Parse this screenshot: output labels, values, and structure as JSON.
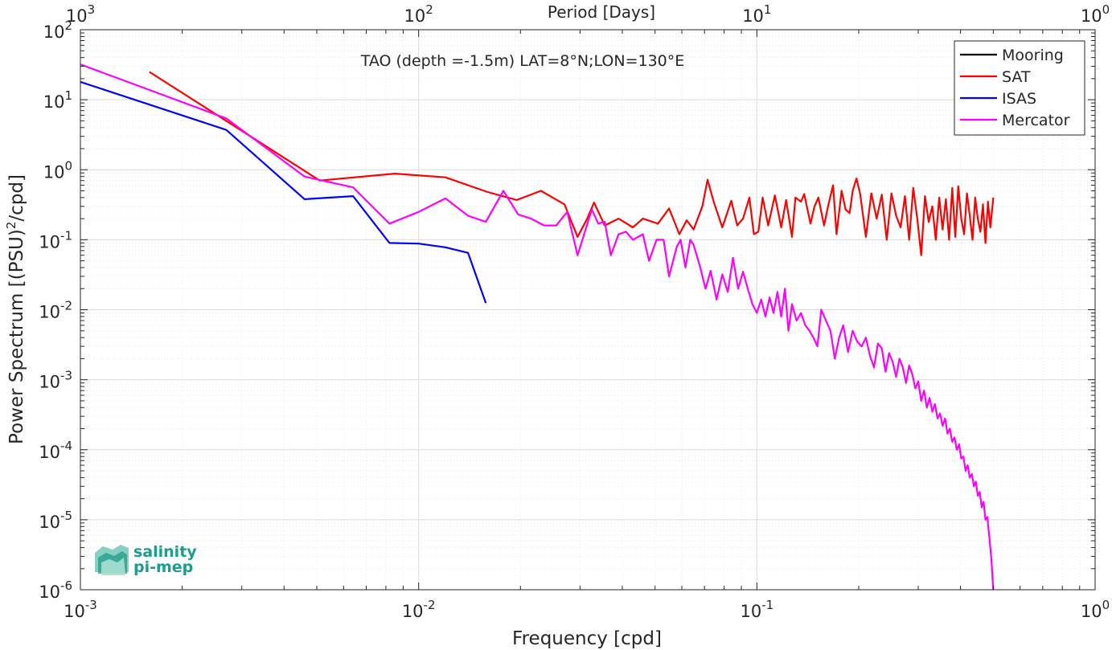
{
  "chart_data": {
    "type": "line",
    "title": "TAO (depth =-1.5m) LAT=8°N;LON=130°E",
    "xlabel": "Frequency [cpd]",
    "ylabel": "Power Spectrum [(PSU)",
    "ylabel_sup": "2",
    "ylabel_tail": "/cpd]",
    "x2label": "Period [Days]",
    "xscale": "log",
    "yscale": "log",
    "xlim": [
      0.001,
      1
    ],
    "ylim": [
      1e-06,
      100
    ],
    "grid": true,
    "legend_position": "top-right",
    "x_ticks": [
      {
        "base": "10",
        "exp": "-3",
        "value": 0.001
      },
      {
        "base": "10",
        "exp": "-2",
        "value": 0.01
      },
      {
        "base": "10",
        "exp": "-1",
        "value": 0.1
      },
      {
        "base": "10",
        "exp": "0",
        "value": 1
      }
    ],
    "x2_ticks": [
      {
        "base": "10",
        "exp": "3",
        "value": 0.001
      },
      {
        "base": "10",
        "exp": "2",
        "value": 0.01
      },
      {
        "base": "10",
        "exp": "1",
        "value": 0.1
      },
      {
        "base": "10",
        "exp": "0",
        "value": 1
      }
    ],
    "y_ticks": [
      {
        "base": "10",
        "exp": "2",
        "value": 100
      },
      {
        "base": "10",
        "exp": "1",
        "value": 10
      },
      {
        "base": "10",
        "exp": "0",
        "value": 1
      },
      {
        "base": "10",
        "exp": "-1",
        "value": 0.1
      },
      {
        "base": "10",
        "exp": "-2",
        "value": 0.01
      },
      {
        "base": "10",
        "exp": "-3",
        "value": 0.001
      },
      {
        "base": "10",
        "exp": "-4",
        "value": 0.0001
      },
      {
        "base": "10",
        "exp": "-5",
        "value": 1e-05
      },
      {
        "base": "10",
        "exp": "-6",
        "value": 1e-06
      }
    ],
    "series": [
      {
        "name": "Mooring",
        "color": "#000000",
        "x": [],
        "y": []
      },
      {
        "name": "SAT",
        "color": "#ff0000",
        "x": [
          0.0016,
          0.0051,
          0.0085,
          0.012,
          0.016,
          0.0195,
          0.023,
          0.027,
          0.0295,
          0.0315,
          0.033,
          0.0355,
          0.039,
          0.043,
          0.046,
          0.051,
          0.055,
          0.059,
          0.062,
          0.065,
          0.069,
          0.0715,
          0.0745,
          0.079,
          0.084,
          0.0875,
          0.091,
          0.095,
          0.098,
          0.101,
          0.104,
          0.108,
          0.113,
          0.118,
          0.122,
          0.127,
          0.13,
          0.135,
          0.138,
          0.144,
          0.148,
          0.152,
          0.158,
          0.163,
          0.168,
          0.172,
          0.178,
          0.183,
          0.188,
          0.192,
          0.197,
          0.202,
          0.21,
          0.218,
          0.226,
          0.234,
          0.242,
          0.25,
          0.258,
          0.266,
          0.274,
          0.282,
          0.29,
          0.298,
          0.306,
          0.314,
          0.322,
          0.33,
          0.338,
          0.346,
          0.354,
          0.362,
          0.37,
          0.378,
          0.386,
          0.394,
          0.402,
          0.41,
          0.418,
          0.426,
          0.434,
          0.442,
          0.45,
          0.458,
          0.466,
          0.474,
          0.482,
          0.49,
          0.5
        ],
        "y": [
          25,
          0.7,
          0.88,
          0.78,
          0.48,
          0.37,
          0.5,
          0.32,
          0.11,
          0.2,
          0.34,
          0.16,
          0.2,
          0.15,
          0.2,
          0.17,
          0.28,
          0.12,
          0.19,
          0.14,
          0.3,
          0.72,
          0.35,
          0.15,
          0.36,
          0.16,
          0.2,
          0.4,
          0.12,
          0.13,
          0.4,
          0.16,
          0.43,
          0.15,
          0.37,
          0.11,
          0.4,
          0.35,
          0.45,
          0.17,
          0.3,
          0.4,
          0.16,
          0.33,
          0.6,
          0.12,
          0.5,
          0.27,
          0.24,
          0.5,
          0.75,
          0.45,
          0.11,
          0.46,
          0.2,
          0.44,
          0.1,
          0.46,
          0.22,
          0.15,
          0.42,
          0.1,
          0.55,
          0.2,
          0.06,
          0.42,
          0.18,
          0.3,
          0.1,
          0.4,
          0.14,
          0.38,
          0.1,
          0.55,
          0.11,
          0.58,
          0.2,
          0.12,
          0.46,
          0.22,
          0.1,
          0.4,
          0.2,
          0.13,
          0.32,
          0.09,
          0.35,
          0.15,
          0.4
        ]
      },
      {
        "name": "ISAS",
        "color": "#0000ff",
        "x": [
          0.001,
          0.0027,
          0.0046,
          0.0064,
          0.0082,
          0.01,
          0.012,
          0.014,
          0.0158
        ],
        "y": [
          18,
          3.7,
          0.38,
          0.42,
          0.09,
          0.088,
          0.078,
          0.065,
          0.0125
        ]
      },
      {
        "name": "Mercator",
        "color": "#ff00ff",
        "x": [
          0.001,
          0.0027,
          0.0046,
          0.0064,
          0.0082,
          0.01,
          0.012,
          0.014,
          0.0158,
          0.0178,
          0.0197,
          0.0215,
          0.0235,
          0.0255,
          0.0275,
          0.0295,
          0.031,
          0.0325,
          0.034,
          0.0355,
          0.037,
          0.039,
          0.041,
          0.043,
          0.046,
          0.048,
          0.0505,
          0.053,
          0.055,
          0.058,
          0.0595,
          0.0615,
          0.0635,
          0.065,
          0.068,
          0.0705,
          0.073,
          0.076,
          0.079,
          0.082,
          0.085,
          0.088,
          0.091,
          0.094,
          0.097,
          0.1,
          0.103,
          0.106,
          0.109,
          0.112,
          0.115,
          0.118,
          0.121,
          0.124,
          0.127,
          0.131,
          0.135,
          0.139,
          0.143,
          0.147,
          0.151,
          0.155,
          0.16,
          0.165,
          0.17,
          0.175,
          0.18,
          0.186,
          0.192,
          0.198,
          0.204,
          0.21,
          0.216,
          0.222,
          0.228,
          0.234,
          0.24,
          0.246,
          0.252,
          0.258,
          0.264,
          0.27,
          0.276,
          0.282,
          0.288,
          0.294,
          0.3,
          0.306,
          0.312,
          0.318,
          0.324,
          0.33,
          0.336,
          0.342,
          0.348,
          0.354,
          0.36,
          0.366,
          0.372,
          0.378,
          0.384,
          0.39,
          0.396,
          0.402,
          0.408,
          0.414,
          0.42,
          0.426,
          0.432,
          0.438,
          0.444,
          0.45,
          0.456,
          0.462,
          0.468,
          0.474,
          0.48,
          0.486,
          0.49,
          0.494,
          0.497,
          0.5
        ],
        "y": [
          32,
          5.4,
          0.8,
          0.56,
          0.17,
          0.25,
          0.39,
          0.22,
          0.18,
          0.5,
          0.23,
          0.2,
          0.16,
          0.16,
          0.25,
          0.06,
          0.13,
          0.27,
          0.17,
          0.18,
          0.06,
          0.12,
          0.13,
          0.1,
          0.12,
          0.05,
          0.1,
          0.1,
          0.03,
          0.08,
          0.1,
          0.04,
          0.1,
          0.085,
          0.04,
          0.02,
          0.036,
          0.014,
          0.032,
          0.018,
          0.055,
          0.02,
          0.035,
          0.02,
          0.012,
          0.009,
          0.014,
          0.008,
          0.015,
          0.009,
          0.018,
          0.008,
          0.02,
          0.005,
          0.012,
          0.007,
          0.009,
          0.006,
          0.005,
          0.004,
          0.003,
          0.01,
          0.007,
          0.005,
          0.002,
          0.004,
          0.006,
          0.0025,
          0.005,
          0.0035,
          0.003,
          0.004,
          0.0022,
          0.0015,
          0.0033,
          0.0028,
          0.0013,
          0.0024,
          0.0018,
          0.0011,
          0.002,
          0.0015,
          0.0009,
          0.0016,
          0.0012,
          0.00075,
          0.00095,
          0.0005,
          0.0007,
          0.0004,
          0.00055,
          0.00035,
          0.00045,
          0.00028,
          0.00033,
          0.00022,
          0.00028,
          0.00017,
          0.0002,
          0.00013,
          0.00015,
          0.0001,
          0.00012,
          7.5e-05,
          8e-05,
          5e-05,
          6e-05,
          4e-05,
          4.5e-05,
          3e-05,
          3.5e-05,
          2.2e-05,
          2.5e-05,
          1.5e-05,
          1.8e-05,
          1e-05,
          1.1e-05,
          6e-06,
          4e-06,
          2.5e-06,
          1.5e-06,
          1e-06
        ]
      }
    ]
  },
  "logo": {
    "line1": "salinity",
    "line2": "pi-mep",
    "color": "#1a9e8f"
  }
}
